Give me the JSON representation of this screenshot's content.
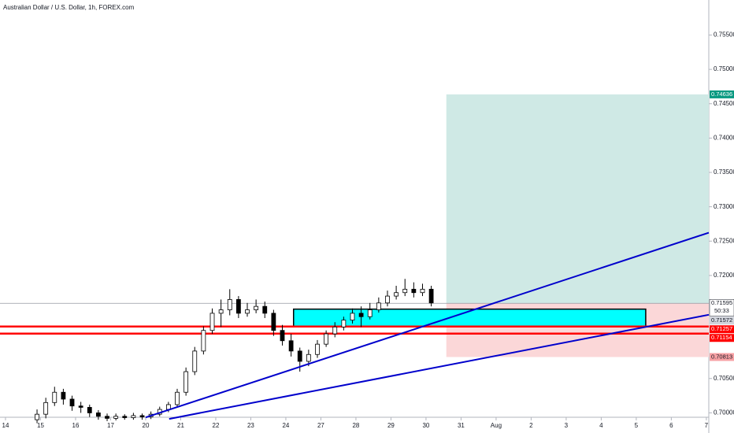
{
  "chart_data": {
    "type": "candlestick",
    "title": "Australian Dollar / U.S. Dollar, 1h, FOREX.com",
    "x": [
      0.9,
      1.15,
      1.4,
      1.65,
      1.9,
      2.15,
      2.4,
      2.65,
      2.9,
      3.15,
      3.4,
      3.65,
      3.9,
      4.15,
      4.4,
      4.65,
      4.9,
      5.15,
      5.4,
      5.65,
      5.9,
      6.15,
      6.4,
      6.65,
      6.9,
      7.15,
      7.4,
      7.65,
      7.9,
      8.15,
      8.4,
      8.65,
      8.9,
      9.15,
      9.4,
      9.65,
      9.9,
      10.15,
      10.4,
      10.65,
      10.9,
      11.15,
      11.4,
      11.65,
      11.9,
      12.15
    ],
    "open": [
      0.699,
      0.6998,
      0.7015,
      0.703,
      0.702,
      0.701,
      0.7008,
      0.7,
      0.6995,
      0.6992,
      0.6995,
      0.6993,
      0.6996,
      0.6994,
      0.6998,
      0.7005,
      0.7012,
      0.703,
      0.706,
      0.709,
      0.712,
      0.7145,
      0.715,
      0.7165,
      0.7145,
      0.715,
      0.7155,
      0.7145,
      0.712,
      0.7105,
      0.709,
      0.7075,
      0.7085,
      0.71,
      0.7115,
      0.7125,
      0.7135,
      0.7145,
      0.714,
      0.715,
      0.716,
      0.717,
      0.7175,
      0.718,
      0.7175,
      0.718
    ],
    "high": [
      0.7005,
      0.7022,
      0.7038,
      0.7035,
      0.7025,
      0.7016,
      0.7012,
      0.7004,
      0.6999,
      0.6999,
      0.6998,
      0.7,
      0.6999,
      0.7002,
      0.7009,
      0.7016,
      0.7035,
      0.7066,
      0.7096,
      0.7126,
      0.7152,
      0.7165,
      0.718,
      0.717,
      0.716,
      0.7165,
      0.7162,
      0.715,
      0.7128,
      0.7115,
      0.7095,
      0.7092,
      0.7106,
      0.712,
      0.7132,
      0.714,
      0.7152,
      0.7155,
      0.716,
      0.7168,
      0.7178,
      0.7185,
      0.7195,
      0.719,
      0.7188,
      0.7185
    ],
    "low": [
      0.6985,
      0.6992,
      0.701,
      0.7012,
      0.7003,
      0.7,
      0.6994,
      0.699,
      0.6988,
      0.6989,
      0.699,
      0.699,
      0.699,
      0.6991,
      0.6995,
      0.7001,
      0.7008,
      0.7025,
      0.7055,
      0.7085,
      0.7115,
      0.7125,
      0.7142,
      0.7138,
      0.714,
      0.7145,
      0.7138,
      0.7112,
      0.7098,
      0.7082,
      0.706,
      0.7068,
      0.708,
      0.7096,
      0.711,
      0.712,
      0.713,
      0.7125,
      0.7136,
      0.7146,
      0.7155,
      0.7165,
      0.717,
      0.7168,
      0.717,
      0.7155
    ],
    "close": [
      0.6998,
      0.7015,
      0.703,
      0.702,
      0.701,
      0.7008,
      0.7,
      0.6995,
      0.6992,
      0.6995,
      0.6993,
      0.6996,
      0.6994,
      0.6998,
      0.7005,
      0.7012,
      0.703,
      0.706,
      0.709,
      0.712,
      0.7145,
      0.715,
      0.7165,
      0.7145,
      0.715,
      0.7155,
      0.7145,
      0.712,
      0.7105,
      0.709,
      0.7075,
      0.7085,
      0.71,
      0.7115,
      0.7125,
      0.7135,
      0.7145,
      0.714,
      0.715,
      0.716,
      0.717,
      0.7175,
      0.718,
      0.7175,
      0.718,
      0.716
    ],
    "xlim": [
      -0.157,
      20.07
    ],
    "ylim": [
      0.69936,
      0.7601
    ],
    "xticks": [
      {
        "value": 0,
        "label": "14"
      },
      {
        "value": 1,
        "label": "15"
      },
      {
        "value": 2,
        "label": "16"
      },
      {
        "value": 3,
        "label": "17"
      },
      {
        "value": 4,
        "label": "20"
      },
      {
        "value": 5,
        "label": "21"
      },
      {
        "value": 6,
        "label": "22"
      },
      {
        "value": 7,
        "label": "23"
      },
      {
        "value": 8,
        "label": "24"
      },
      {
        "value": 9,
        "label": "27"
      },
      {
        "value": 10,
        "label": "28"
      },
      {
        "value": 11,
        "label": "29"
      },
      {
        "value": 12,
        "label": "30"
      },
      {
        "value": 13,
        "label": "31"
      },
      {
        "value": 14,
        "label": "Aug"
      },
      {
        "value": 15,
        "label": "2"
      },
      {
        "value": 16,
        "label": "3"
      },
      {
        "value": 17,
        "label": "4"
      },
      {
        "value": 18,
        "label": "5"
      },
      {
        "value": 19,
        "label": "6"
      },
      {
        "value": 20,
        "label": "7"
      }
    ],
    "yticks": [
      {
        "value": 0.755,
        "label": "0.75500"
      },
      {
        "value": 0.75,
        "label": "0.75000"
      },
      {
        "value": 0.745,
        "label": "0.74500"
      },
      {
        "value": 0.74,
        "label": "0.74000"
      },
      {
        "value": 0.735,
        "label": "0.73500"
      },
      {
        "value": 0.73,
        "label": "0.73000"
      },
      {
        "value": 0.725,
        "label": "0.72500"
      },
      {
        "value": 0.72,
        "label": "0.72000"
      },
      {
        "value": 0.705,
        "label": "0.70500"
      },
      {
        "value": 0.7,
        "label": "0.70000"
      }
    ],
    "current_price": 0.71595,
    "countdown": "50:33",
    "position": {
      "x": [
        12.58,
        20.07
      ],
      "target": 0.74636,
      "entry": 0.71595,
      "stop": 0.70813
    },
    "zone": {
      "x": [
        8.22,
        18.27
      ],
      "y": [
        0.7126,
        0.7151
      ],
      "color": "#00ffff"
    },
    "zone_label": 0.71572,
    "levels": [
      {
        "value": 0.71257,
        "color": "#ff0000"
      },
      {
        "value": 0.71154,
        "color": "#ff0000"
      }
    ],
    "trendlines": [
      {
        "x": [
          4.0,
          20.07
        ],
        "y": [
          0.69934,
          0.72623
        ],
        "color": "#0000cc"
      },
      {
        "x": [
          4.67,
          20.07
        ],
        "y": [
          0.69912,
          0.71428
        ],
        "color": "#0000cc"
      }
    ]
  }
}
